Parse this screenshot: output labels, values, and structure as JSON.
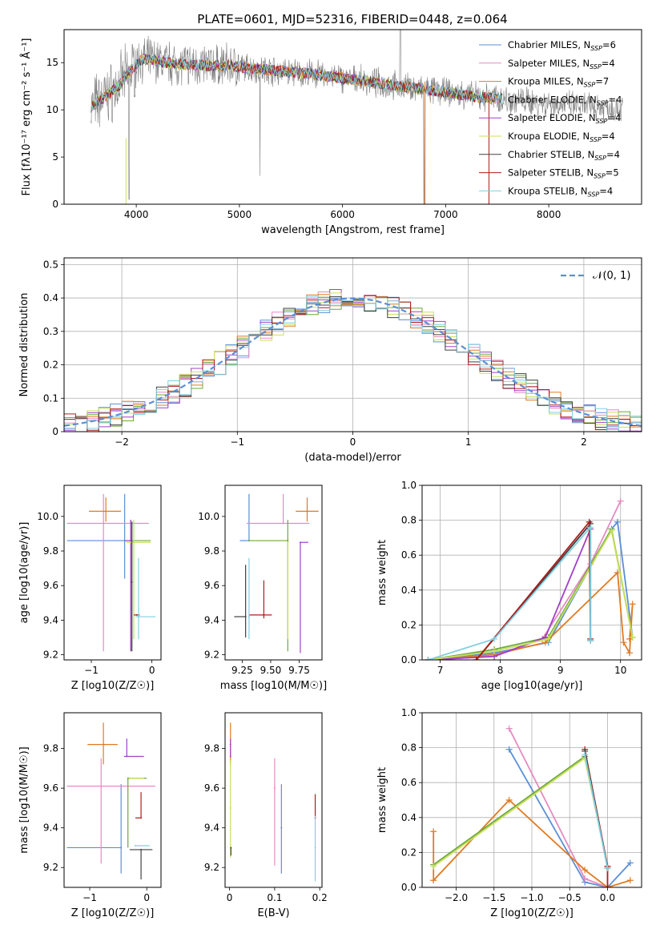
{
  "figure_title": "PLATE=0601, MJD=52316, FIBERID=0448, z=0.064",
  "colors": {
    "ch_miles": "#5b8fd6",
    "sa_miles": "#e68ac1",
    "kr_miles": "#e07b22",
    "ch_elodie": "#6ca83a",
    "sa_elodie": "#a040c8",
    "kr_elodie": "#c8e05a",
    "ch_stelib": "#404040",
    "sa_stelib": "#b01c1c",
    "kr_stelib": "#80d0e0",
    "data": "#808080",
    "normal": "#5b8fd6"
  },
  "chart_data": [
    {
      "id": "spectrum",
      "type": "line",
      "xlabel": "wavelength [Angstrom, rest frame]",
      "ylabel": "Flux [fλ10⁻¹⁷ erg cm⁻² s⁻¹ Å⁻¹]",
      "xlim": [
        3300,
        8900
      ],
      "ylim": [
        0,
        18.5
      ],
      "xticks": [
        4000,
        5000,
        6000,
        7000,
        8000
      ],
      "yticks": [
        0,
        5,
        10,
        15
      ],
      "legend_position": "top-right",
      "legend": [
        "Chabrier MILES, N_SSP=6",
        "Salpeter MILES, N_SSP=4",
        "Kroupa MILES, N_SSP=7",
        "Chabrier ELODIE, N_SSP=4",
        "Salpeter ELODIE, N_SSP=4",
        "Kroupa ELODIE, N_SSP=4",
        "Chabrier STELIB, N_SSP=4",
        "Salpeter STELIB, N_SSP=5",
        "Kroupa STELIB, N_SSP=4"
      ],
      "continuum": {
        "x": [
          3560,
          3650,
          3750,
          3850,
          3950,
          4050,
          4150,
          4300,
          4500,
          4700,
          4900,
          5100,
          5300,
          5500,
          5700,
          5900,
          6100,
          6300,
          6500,
          6700,
          6900,
          7100,
          7300,
          7500,
          7700,
          7900,
          8100,
          8300,
          8500,
          8700
        ],
        "y": [
          10.3,
          11.0,
          11.8,
          12.8,
          14.2,
          15.4,
          15.3,
          15.0,
          14.8,
          14.7,
          14.7,
          14.4,
          14.2,
          14.0,
          13.8,
          13.5,
          13.2,
          12.9,
          12.6,
          12.3,
          12.0,
          11.7,
          11.4,
          11.2,
          11.0,
          10.8,
          10.6,
          10.4,
          10.3,
          10.2
        ]
      }
    },
    {
      "id": "residuals",
      "type": "line",
      "xlabel": "(data-model)/error",
      "ylabel": "Normed distribution",
      "xlim": [
        -2.5,
        2.5
      ],
      "ylim": [
        0,
        0.52
      ],
      "xticks": [
        -2,
        -1,
        0,
        1,
        2
      ],
      "yticks": [
        0.0,
        0.1,
        0.2,
        0.3,
        0.4,
        0.5
      ],
      "legend": [
        "𝒩(0, 1)"
      ],
      "legend_position": "top-right",
      "grid": true
    },
    {
      "id": "z_age",
      "type": "scatter",
      "xlabel": "Z [log10(Z/Z☉)]",
      "ylabel": "age  [log10(age/yr)]",
      "xlim": [
        -1.45,
        0.15
      ],
      "ylim": [
        9.17,
        10.18
      ],
      "xticks": [
        -1,
        0
      ],
      "yticks": [
        9.2,
        9.4,
        9.6,
        9.8,
        10.0
      ],
      "points": [
        {
          "c": "ch_miles",
          "x": -0.45,
          "xe": [
            0.95,
            0.0
          ],
          "y": 9.86,
          "ye": [
            0.22,
            0.27
          ]
        },
        {
          "c": "sa_miles",
          "x": -0.8,
          "xe": [
            0.6,
            0.75
          ],
          "y": 9.96,
          "ye": [
            0.74,
            0.17
          ]
        },
        {
          "c": "kr_miles",
          "x": -0.76,
          "xe": [
            0.28,
            0.25
          ],
          "y": 10.03,
          "ye": [
            0.06,
            0.08
          ]
        },
        {
          "c": "ch_elodie",
          "x": -0.35,
          "xe": [
            0.1,
            0.33
          ],
          "y": 9.86,
          "ye": [
            0.64,
            0.12
          ]
        },
        {
          "c": "sa_elodie",
          "x": -0.35,
          "xe": [
            0.1,
            0.0
          ],
          "y": 9.86,
          "ye": [
            0.64,
            0.12
          ]
        },
        {
          "c": "kr_elodie",
          "x": -0.3,
          "xe": [
            0.12,
            0.28
          ],
          "y": 9.85,
          "ye": [
            0.56,
            0.13
          ]
        },
        {
          "c": "ch_stelib",
          "x": -0.33,
          "xe": [
            0.0,
            0.0
          ],
          "y": 9.62,
          "ye": [
            0.4,
            0.35
          ]
        },
        {
          "c": "sa_stelib",
          "x": -0.25,
          "xe": [
            0.05,
            0.05
          ],
          "y": 9.43,
          "ye": [
            0.0,
            0.0
          ]
        },
        {
          "c": "kr_stelib",
          "x": -0.22,
          "xe": [
            0.05,
            0.28
          ],
          "y": 9.42,
          "ye": [
            0.13,
            0.34
          ]
        }
      ]
    },
    {
      "id": "mass_age",
      "type": "scatter",
      "xlabel": "mass [log10(M/M☉)]",
      "ylabel": "",
      "xlim": [
        9.1,
        9.95
      ],
      "ylim": [
        9.17,
        10.18
      ],
      "xticks": [
        9.25,
        9.5,
        9.75
      ],
      "xticklabels": [
        "9.25",
        "9.50",
        "9.75"
      ],
      "yticks": [
        9.2,
        9.4,
        9.6,
        9.8,
        10.0
      ],
      "points": [
        {
          "c": "ch_miles",
          "x": 9.31,
          "xe": [
            0.08,
            0.0
          ],
          "y": 9.86,
          "ye": [
            0.0,
            0.27
          ]
        },
        {
          "c": "sa_miles",
          "x": 9.61,
          "xe": [
            0.32,
            0.23
          ],
          "y": 9.96,
          "ye": [
            0.0,
            0.17
          ]
        },
        {
          "c": "kr_miles",
          "x": 9.82,
          "xe": [
            0.1,
            0.1
          ],
          "y": 10.03,
          "ye": [
            0.06,
            0.08
          ]
        },
        {
          "c": "ch_elodie",
          "x": 9.65,
          "xe": [
            0.35,
            0.0
          ],
          "y": 9.86,
          "ye": [
            0.64,
            0.12
          ]
        },
        {
          "c": "sa_elodie",
          "x": 9.76,
          "xe": [
            0.0,
            0.07
          ],
          "y": 9.85,
          "ye": [
            0.64,
            0.0
          ]
        },
        {
          "c": "kr_elodie",
          "x": 9.65,
          "xe": [
            0.0,
            0.0
          ],
          "y": 9.85,
          "ye": [
            0.56,
            0.0
          ]
        },
        {
          "c": "ch_stelib",
          "x": 9.28,
          "xe": [
            0.1,
            0.0
          ],
          "y": 9.42,
          "ye": [
            0.12,
            0.3
          ]
        },
        {
          "c": "sa_stelib",
          "x": 9.44,
          "xe": [
            0.13,
            0.07
          ],
          "y": 9.43,
          "ye": [
            0.02,
            0.2
          ]
        },
        {
          "c": "kr_stelib",
          "x": 9.31,
          "xe": [
            0.0,
            0.0
          ],
          "y": 9.42,
          "ye": [
            0.13,
            0.34
          ]
        }
      ]
    },
    {
      "id": "age_weight",
      "type": "line",
      "xlabel": "age  [log10(age/yr)]",
      "ylabel": "mass weight",
      "xlim": [
        6.7,
        10.35
      ],
      "ylim": [
        0,
        1.0
      ],
      "xticks": [
        7,
        8,
        9,
        10
      ],
      "yticks": [
        0.0,
        0.2,
        0.4,
        0.6,
        0.8,
        1.0
      ],
      "grid": true,
      "series": [
        {
          "c": "ch_miles",
          "x": [
            6.8,
            7.9,
            8.8,
            9.85,
            9.95,
            10.2
          ],
          "y": [
            0.0,
            0.04,
            0.1,
            0.75,
            0.79,
            0.13
          ]
        },
        {
          "c": "sa_miles",
          "x": [
            6.8,
            7.9,
            8.7,
            9.5,
            10.0
          ],
          "y": [
            0.0,
            0.02,
            0.12,
            0.55,
            0.91
          ]
        },
        {
          "c": "kr_miles",
          "x": [
            6.8,
            7.9,
            8.75,
            9.95,
            10.05,
            10.15,
            10.2,
            10.15
          ],
          "y": [
            0.0,
            0.03,
            0.1,
            0.5,
            0.1,
            0.04,
            0.32,
            0.12
          ]
        },
        {
          "c": "ch_elodie",
          "x": [
            6.8,
            7.9,
            8.8,
            9.85,
            10.2
          ],
          "y": [
            0.0,
            0.06,
            0.13,
            0.75,
            0.13
          ]
        },
        {
          "c": "sa_elodie",
          "x": [
            6.8,
            7.9,
            8.75,
            9.5
          ],
          "y": [
            0.0,
            0.02,
            0.13,
            0.75
          ]
        },
        {
          "c": "kr_elodie",
          "x": [
            6.8,
            7.9,
            8.8,
            9.85,
            10.2
          ],
          "y": [
            0.0,
            0.05,
            0.12,
            0.74,
            0.13
          ]
        },
        {
          "c": "ch_stelib",
          "x": [
            7.6,
            9.5,
            9.5
          ],
          "y": [
            0.0,
            0.78,
            0.11
          ]
        },
        {
          "c": "sa_stelib",
          "x": [
            7.6,
            9.48,
            9.5
          ],
          "y": [
            0.0,
            0.79,
            0.12
          ]
        },
        {
          "c": "kr_stelib",
          "x": [
            6.8,
            7.9,
            9.5,
            9.5
          ],
          "y": [
            0.0,
            0.12,
            0.76,
            0.11
          ]
        }
      ]
    },
    {
      "id": "z_mass",
      "type": "scatter",
      "xlabel": "Z [log10(Z/Z☉)]",
      "ylabel": "mass [log10(M/M☉)]",
      "xlim": [
        -1.45,
        0.25
      ],
      "ylim": [
        9.1,
        9.98
      ],
      "xticks": [
        -1,
        0
      ],
      "yticks": [
        9.2,
        9.4,
        9.6,
        9.8
      ],
      "points": [
        {
          "c": "ch_miles",
          "x": -0.45,
          "xe": [
            0.95,
            0.0
          ],
          "y": 9.3,
          "ye": [
            0.13,
            0.32
          ]
        },
        {
          "c": "sa_miles",
          "x": -0.8,
          "xe": [
            0.6,
            0.95
          ],
          "y": 9.61,
          "ye": [
            0.39,
            0.14
          ]
        },
        {
          "c": "kr_miles",
          "x": -0.76,
          "xe": [
            0.28,
            0.25
          ],
          "y": 9.82,
          "ye": [
            0.1,
            0.11
          ]
        },
        {
          "c": "ch_elodie",
          "x": -0.33,
          "xe": [
            0.0,
            0.33
          ],
          "y": 9.65,
          "ye": [
            0.35,
            0.0
          ]
        },
        {
          "c": "sa_elodie",
          "x": -0.35,
          "xe": [
            0.05,
            0.3
          ],
          "y": 9.76,
          "ye": [
            0.0,
            0.09
          ]
        },
        {
          "c": "kr_elodie",
          "x": -0.3,
          "xe": [
            0.0,
            0.25
          ],
          "y": 9.65,
          "ye": [
            0.0,
            0.0
          ]
        },
        {
          "c": "ch_stelib",
          "x": -0.1,
          "xe": [
            0.2,
            0.2
          ],
          "y": 9.29,
          "ye": [
            0.15,
            0.0
          ]
        },
        {
          "c": "sa_stelib",
          "x": -0.1,
          "xe": [
            0.1,
            0.0
          ],
          "y": 9.45,
          "ye": [
            0.0,
            0.13
          ]
        },
        {
          "c": "kr_stelib",
          "x": -0.2,
          "xe": [
            0.0,
            0.25
          ],
          "y": 9.31,
          "ye": [
            0.0,
            0.0
          ]
        }
      ]
    },
    {
      "id": "ebv_mass",
      "type": "scatter",
      "xlabel": "E(B-V)",
      "ylabel": "",
      "xlim": [
        -0.01,
        0.205
      ],
      "ylim": [
        9.1,
        9.98
      ],
      "xticks": [
        0.0,
        0.1,
        0.2
      ],
      "yticks": [
        9.2,
        9.4,
        9.6,
        9.8
      ],
      "points": [
        {
          "c": "kr_miles",
          "x": 0.002,
          "y": 9.82,
          "ye": [
            0.1,
            0.11
          ]
        },
        {
          "c": "sa_elodie",
          "x": 0.002,
          "y": 9.76,
          "ye": [
            0.0,
            0.09
          ]
        },
        {
          "c": "kr_elodie",
          "x": 0.002,
          "y": 9.5,
          "ye": [
            0.25,
            0.24
          ]
        },
        {
          "c": "ch_stelib",
          "x": 0.003,
          "y": 9.3,
          "ye": [
            0.04,
            0.0
          ]
        },
        {
          "c": "sa_miles",
          "x": 0.1,
          "y": 9.6,
          "ye": [
            0.39,
            0.15
          ]
        },
        {
          "c": "ch_miles",
          "x": 0.115,
          "y": 9.4,
          "ye": [
            0.23,
            0.22
          ]
        },
        {
          "c": "sa_stelib",
          "x": 0.19,
          "y": 9.45,
          "ye": [
            0.0,
            0.12
          ]
        },
        {
          "c": "kr_stelib",
          "x": 0.19,
          "y": 9.3,
          "ye": [
            0.17,
            0.16
          ]
        }
      ]
    },
    {
      "id": "z_weight",
      "type": "line",
      "xlabel": "Z [log10(Z/Z☉)]",
      "ylabel": "mass weight",
      "xlim": [
        -2.45,
        0.45
      ],
      "ylim": [
        0,
        1.0
      ],
      "xticks": [
        -2.0,
        -1.5,
        -1.0,
        -0.5,
        0.0
      ],
      "xticklabels": [
        "−2.0",
        "−1.5",
        "−1.0",
        "−0.5",
        "0.0"
      ],
      "yticks": [
        0.0,
        0.2,
        0.4,
        0.6,
        0.8,
        1.0
      ],
      "grid": true,
      "series": [
        {
          "c": "ch_miles",
          "x": [
            -1.3,
            -0.3,
            0.0,
            0.3
          ],
          "y": [
            0.79,
            0.03,
            0.0,
            0.14
          ]
        },
        {
          "c": "sa_miles",
          "x": [
            -1.3,
            -0.3,
            0.0
          ],
          "y": [
            0.91,
            0.05,
            0.0
          ]
        },
        {
          "c": "kr_miles",
          "x": [
            -2.3,
            -2.3,
            -1.3,
            -0.3,
            0.0,
            0.3
          ],
          "y": [
            0.32,
            0.04,
            0.5,
            0.1,
            0.0,
            0.04
          ]
        },
        {
          "c": "ch_elodie",
          "x": [
            -2.3,
            -0.3,
            0.0
          ],
          "y": [
            0.13,
            0.75,
            0.12
          ]
        },
        {
          "c": "kr_elodie",
          "x": [
            -2.3,
            -0.3,
            0.0
          ],
          "y": [
            0.12,
            0.74,
            0.12
          ]
        },
        {
          "c": "sa_stelib",
          "x": [
            -0.3,
            0.0,
            0.0
          ],
          "y": [
            0.79,
            0.12,
            0.0
          ]
        },
        {
          "c": "ch_stelib",
          "x": [
            -0.3,
            0.0
          ],
          "y": [
            0.78,
            0.11
          ]
        },
        {
          "c": "kr_stelib",
          "x": [
            -0.3,
            0.0
          ],
          "y": [
            0.76,
            0.11
          ]
        }
      ]
    }
  ]
}
